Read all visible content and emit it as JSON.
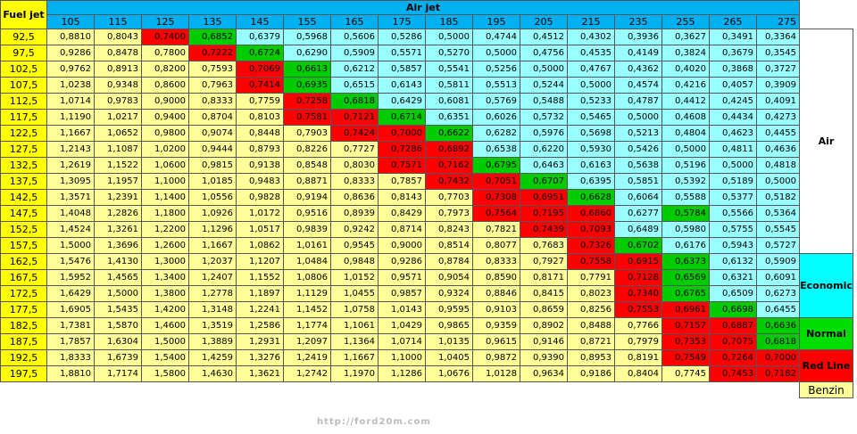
{
  "header": {
    "fuel_jet_label": "Fuel jet",
    "air_jet_label": "Air jet",
    "air_jets": [
      "105",
      "115",
      "125",
      "135",
      "145",
      "155",
      "165",
      "175",
      "185",
      "195",
      "205",
      "215",
      "235",
      "255",
      "265",
      "275"
    ]
  },
  "rows": [
    {
      "fuel": "92,5",
      "values": [
        "0,8810",
        "0,8043",
        "0,7400",
        "0,6852",
        "0,6379",
        "0,5968",
        "0,5606",
        "0,5286",
        "0,5000",
        "0,4744",
        "0,4512",
        "0,4302",
        "0,3936",
        "0,3627",
        "0,3491",
        "0,3364"
      ],
      "colors": [
        "y",
        "y",
        "r",
        "g",
        "c",
        "c",
        "c",
        "c",
        "c",
        "c",
        "c",
        "c",
        "c",
        "c",
        "c",
        "c"
      ]
    },
    {
      "fuel": "97,5",
      "values": [
        "0,9286",
        "0,8478",
        "0,7800",
        "0,7222",
        "0,6724",
        "0,6290",
        "0,5909",
        "0,5571",
        "0,5270",
        "0,5000",
        "0,4756",
        "0,4535",
        "0,4149",
        "0,3824",
        "0,3679",
        "0,3545"
      ],
      "colors": [
        "y",
        "y",
        "y",
        "r",
        "g",
        "c",
        "c",
        "c",
        "c",
        "c",
        "c",
        "c",
        "c",
        "c",
        "c",
        "c"
      ]
    },
    {
      "fuel": "102,5",
      "values": [
        "0,9762",
        "0,8913",
        "0,8200",
        "0,7593",
        "0,7069",
        "0,6613",
        "0,6212",
        "0,5857",
        "0,5541",
        "0,5256",
        "0,5000",
        "0,4767",
        "0,4362",
        "0,4020",
        "0,3868",
        "0,3727"
      ],
      "colors": [
        "y",
        "y",
        "y",
        "y",
        "r",
        "g",
        "c",
        "c",
        "c",
        "c",
        "c",
        "c",
        "c",
        "c",
        "c",
        "c"
      ]
    },
    {
      "fuel": "107,5",
      "values": [
        "1,0238",
        "0,9348",
        "0,8600",
        "0,7963",
        "0,7414",
        "0,6935",
        "0,6515",
        "0,6143",
        "0,5811",
        "0,5513",
        "0,5244",
        "0,5000",
        "0,4574",
        "0,4216",
        "0,4057",
        "0,3909"
      ],
      "colors": [
        "y",
        "y",
        "y",
        "y",
        "r",
        "g",
        "c",
        "c",
        "c",
        "c",
        "c",
        "c",
        "c",
        "c",
        "c",
        "c"
      ]
    },
    {
      "fuel": "112,5",
      "values": [
        "1,0714",
        "0,9783",
        "0,9000",
        "0,8333",
        "0,7759",
        "0,7258",
        "0,6818",
        "0,6429",
        "0,6081",
        "0,5769",
        "0,5488",
        "0,5233",
        "0,4787",
        "0,4412",
        "0,4245",
        "0,4091"
      ],
      "colors": [
        "y",
        "y",
        "y",
        "y",
        "y",
        "r",
        "g",
        "c",
        "c",
        "c",
        "c",
        "c",
        "c",
        "c",
        "c",
        "c"
      ]
    },
    {
      "fuel": "117,5",
      "values": [
        "1,1190",
        "1,0217",
        "0,9400",
        "0,8704",
        "0,8103",
        "0,7581",
        "0,7121",
        "0,6714",
        "0,6351",
        "0,6026",
        "0,5732",
        "0,5465",
        "0,5000",
        "0,4608",
        "0,4434",
        "0,4273"
      ],
      "colors": [
        "y",
        "y",
        "y",
        "y",
        "y",
        "r",
        "r",
        "g",
        "c",
        "c",
        "c",
        "c",
        "c",
        "c",
        "c",
        "c"
      ]
    },
    {
      "fuel": "122,5",
      "values": [
        "1,1667",
        "1,0652",
        "0,9800",
        "0,9074",
        "0,8448",
        "0,7903",
        "0,7424",
        "0,7000",
        "0,6622",
        "0,6282",
        "0,5976",
        "0,5698",
        "0,5213",
        "0,4804",
        "0,4623",
        "0,4455"
      ],
      "colors": [
        "y",
        "y",
        "y",
        "y",
        "y",
        "y",
        "r",
        "r",
        "g",
        "c",
        "c",
        "c",
        "c",
        "c",
        "c",
        "c"
      ]
    },
    {
      "fuel": "127,5",
      "values": [
        "1,2143",
        "1,1087",
        "1,0200",
        "0,9444",
        "0,8793",
        "0,8226",
        "0,7727",
        "0,7286",
        "0,6892",
        "0,6538",
        "0,6220",
        "0,5930",
        "0,5426",
        "0,5000",
        "0,4811",
        "0,4636"
      ],
      "colors": [
        "y",
        "y",
        "y",
        "y",
        "y",
        "y",
        "y",
        "r",
        "r",
        "c",
        "c",
        "c",
        "c",
        "c",
        "c",
        "c"
      ]
    },
    {
      "fuel": "132,5",
      "values": [
        "1,2619",
        "1,1522",
        "1,0600",
        "0,9815",
        "0,9138",
        "0,8548",
        "0,8030",
        "0,7571",
        "0,7162",
        "0,6795",
        "0,6463",
        "0,6163",
        "0,5638",
        "0,5196",
        "0,5000",
        "0,4818"
      ],
      "colors": [
        "y",
        "y",
        "y",
        "y",
        "y",
        "y",
        "y",
        "r",
        "r",
        "g",
        "c",
        "c",
        "c",
        "c",
        "c",
        "c"
      ]
    },
    {
      "fuel": "137,5",
      "values": [
        "1,3095",
        "1,1957",
        "1,1000",
        "1,0185",
        "0,9483",
        "0,8871",
        "0,8333",
        "0,7857",
        "0,7432",
        "0,7051",
        "0,6707",
        "0,6395",
        "0,5851",
        "0,5392",
        "0,5189",
        "0,5000"
      ],
      "colors": [
        "y",
        "y",
        "y",
        "y",
        "y",
        "y",
        "y",
        "y",
        "r",
        "r",
        "g",
        "c",
        "c",
        "c",
        "c",
        "c"
      ]
    },
    {
      "fuel": "142,5",
      "values": [
        "1,3571",
        "1,2391",
        "1,1400",
        "1,0556",
        "0,9828",
        "0,9194",
        "0,8636",
        "0,8143",
        "0,7703",
        "0,7308",
        "0,6951",
        "0,6628",
        "0,6064",
        "0,5588",
        "0,5377",
        "0,5182"
      ],
      "colors": [
        "y",
        "y",
        "y",
        "y",
        "y",
        "y",
        "y",
        "y",
        "y",
        "r",
        "r",
        "g",
        "c",
        "c",
        "c",
        "c"
      ]
    },
    {
      "fuel": "147,5",
      "values": [
        "1,4048",
        "1,2826",
        "1,1800",
        "1,0926",
        "1,0172",
        "0,9516",
        "0,8939",
        "0,8429",
        "0,7973",
        "0,7564",
        "0,7195",
        "0,6860",
        "0,6277",
        "0,5784",
        "0,5566",
        "0,5364"
      ],
      "colors": [
        "y",
        "y",
        "y",
        "y",
        "y",
        "y",
        "y",
        "y",
        "y",
        "r",
        "r",
        "r",
        "c",
        "g",
        "c",
        "c"
      ]
    },
    {
      "fuel": "152,5",
      "values": [
        "1,4524",
        "1,3261",
        "1,2200",
        "1,1296",
        "1,0517",
        "0,9839",
        "0,9242",
        "0,8714",
        "0,8243",
        "0,7821",
        "0,7439",
        "0,7093",
        "0,6489",
        "0,5980",
        "0,5755",
        "0,5545"
      ],
      "colors": [
        "y",
        "y",
        "y",
        "y",
        "y",
        "y",
        "y",
        "y",
        "y",
        "y",
        "r",
        "r",
        "c",
        "c",
        "c",
        "c"
      ]
    },
    {
      "fuel": "157,5",
      "values": [
        "1,5000",
        "1,3696",
        "1,2600",
        "1,1667",
        "1,0862",
        "1,0161",
        "0,9545",
        "0,9000",
        "0,8514",
        "0,8077",
        "0,7683",
        "0,7326",
        "0,6702",
        "0,6176",
        "0,5943",
        "0,5727"
      ],
      "colors": [
        "y",
        "y",
        "y",
        "y",
        "y",
        "y",
        "y",
        "y",
        "y",
        "y",
        "y",
        "r",
        "g",
        "c",
        "c",
        "c"
      ]
    },
    {
      "fuel": "162,5",
      "values": [
        "1,5476",
        "1,4130",
        "1,3000",
        "1,2037",
        "1,1207",
        "1,0484",
        "0,9848",
        "0,9286",
        "0,8784",
        "0,8333",
        "0,7927",
        "0,7558",
        "0,6915",
        "0,6373",
        "0,6132",
        "0,5909"
      ],
      "colors": [
        "y",
        "y",
        "y",
        "y",
        "y",
        "y",
        "y",
        "y",
        "y",
        "y",
        "y",
        "r",
        "r",
        "g",
        "c",
        "c"
      ]
    },
    {
      "fuel": "167,5",
      "values": [
        "1,5952",
        "1,4565",
        "1,3400",
        "1,2407",
        "1,1552",
        "1,0806",
        "1,0152",
        "0,9571",
        "0,9054",
        "0,8590",
        "0,8171",
        "0,7791",
        "0,7128",
        "0,6569",
        "0,6321",
        "0,6091"
      ],
      "colors": [
        "y",
        "y",
        "y",
        "y",
        "y",
        "y",
        "y",
        "y",
        "y",
        "y",
        "y",
        "y",
        "r",
        "g",
        "c",
        "c"
      ]
    },
    {
      "fuel": "172,5",
      "values": [
        "1,6429",
        "1,5000",
        "1,3800",
        "1,2778",
        "1,1897",
        "1,1129",
        "1,0455",
        "0,9857",
        "0,9324",
        "0,8846",
        "0,8415",
        "0,8023",
        "0,7340",
        "0,6765",
        "0,6509",
        "0,6273"
      ],
      "colors": [
        "y",
        "y",
        "y",
        "y",
        "y",
        "y",
        "y",
        "y",
        "y",
        "y",
        "y",
        "y",
        "r",
        "g",
        "c",
        "c"
      ]
    },
    {
      "fuel": "177,5",
      "values": [
        "1,6905",
        "1,5435",
        "1,4200",
        "1,3148",
        "1,2241",
        "1,1452",
        "1,0758",
        "1,0143",
        "0,9595",
        "0,9103",
        "0,8659",
        "0,8256",
        "0,7553",
        "0,6961",
        "0,6698",
        "0,6455"
      ],
      "colors": [
        "y",
        "y",
        "y",
        "y",
        "y",
        "y",
        "y",
        "y",
        "y",
        "y",
        "y",
        "y",
        "r",
        "r",
        "g",
        "c"
      ]
    },
    {
      "fuel": "182,5",
      "values": [
        "1,7381",
        "1,5870",
        "1,4600",
        "1,3519",
        "1,2586",
        "1,1774",
        "1,1061",
        "1,0429",
        "0,9865",
        "0,9359",
        "0,8902",
        "0,8488",
        "0,7766",
        "0,7157",
        "0,6887",
        "0,6636"
      ],
      "colors": [
        "y",
        "y",
        "y",
        "y",
        "y",
        "y",
        "y",
        "y",
        "y",
        "y",
        "y",
        "y",
        "y",
        "r",
        "r",
        "g"
      ]
    },
    {
      "fuel": "187,5",
      "values": [
        "1,7857",
        "1,6304",
        "1,5000",
        "1,3889",
        "1,2931",
        "1,2097",
        "1,1364",
        "1,0714",
        "1,0135",
        "0,9615",
        "0,9146",
        "0,8721",
        "0,7979",
        "0,7353",
        "0,7075",
        "0,6818"
      ],
      "colors": [
        "y",
        "y",
        "y",
        "y",
        "y",
        "y",
        "y",
        "y",
        "y",
        "y",
        "y",
        "y",
        "y",
        "r",
        "r",
        "g"
      ]
    },
    {
      "fuel": "192,5",
      "values": [
        "1,8333",
        "1,6739",
        "1,5400",
        "1,4259",
        "1,3276",
        "1,2419",
        "1,1667",
        "1,1000",
        "1,0405",
        "0,9872",
        "0,9390",
        "0,8953",
        "0,8191",
        "0,7549",
        "0,7264",
        "0,7000"
      ],
      "colors": [
        "y",
        "y",
        "y",
        "y",
        "y",
        "y",
        "y",
        "y",
        "y",
        "y",
        "y",
        "y",
        "y",
        "r",
        "r",
        "r"
      ]
    },
    {
      "fuel": "197,5",
      "values": [
        "1,8810",
        "1,7174",
        "1,5800",
        "1,4630",
        "1,3621",
        "1,2742",
        "1,1970",
        "1,1286",
        "1,0676",
        "1,0128",
        "0,9634",
        "0,9186",
        "0,8404",
        "0,7745",
        "0,7453",
        "0,7182"
      ],
      "colors": [
        "y",
        "y",
        "y",
        "y",
        "y",
        "y",
        "y",
        "y",
        "y",
        "y",
        "y",
        "y",
        "y",
        "y",
        "r",
        "r"
      ]
    }
  ],
  "legend": {
    "air": "Air",
    "economic": "Economic",
    "normal": "Normal",
    "red_line": "Red Line",
    "benzin": "Benzin"
  },
  "watermark": "http://ford20m.com",
  "colors": {
    "yellow": "#ffff99",
    "cyan": "#99ffff",
    "red": "#ff0000",
    "green": "#00cc00",
    "header_blue": "#00b0f0",
    "fuel_yellow": "#ffff00"
  }
}
